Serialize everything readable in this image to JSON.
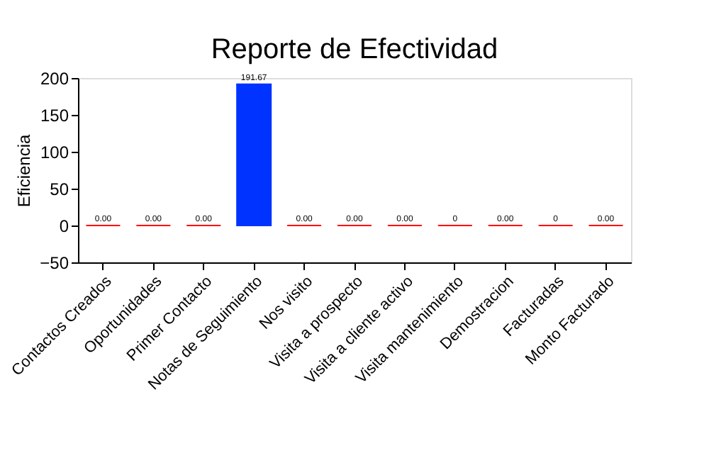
{
  "chart_data": {
    "type": "bar",
    "title": "Reporte de Efectividad",
    "ylabel": "Eficiencia",
    "categories": [
      "Contactos Creados",
      "Oportunidades",
      "Primer Contacto",
      "Notas de Seguimiento",
      "Nos visito",
      "Visita a prospecto",
      "Visita a cliente activo",
      "Visita mantenimiento",
      "Demostracion",
      "Facturadas",
      "Monto Facturado"
    ],
    "values": [
      0,
      0,
      0,
      191.67,
      0,
      0,
      0,
      0,
      0,
      0,
      0
    ],
    "colors": [
      "#ff0000",
      "#ff0000",
      "#ff0000",
      "#0033ff",
      "#ff0000",
      "#ff0000",
      "#ff0000",
      "#ff0000",
      "#ff0000",
      "#ff0000",
      "#ff0000"
    ],
    "value_labels": [
      "0.00",
      "0.00",
      "0.00",
      "191.67",
      "0.00",
      "0.00",
      "0.00",
      "0",
      "0.00",
      "0",
      "0.00"
    ],
    "ylim": [
      -50,
      200
    ],
    "yticks": [
      -50,
      0,
      50,
      100,
      150,
      200
    ],
    "grid": false
  }
}
